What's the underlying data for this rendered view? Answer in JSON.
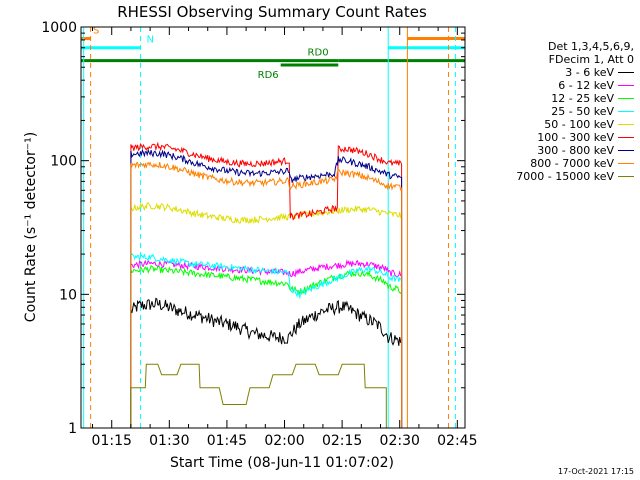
{
  "chart_data": {
    "type": "line",
    "title": "RHESSI Observing Summary Count Rates",
    "xlabel": "Start Time (08-Jun-11 01:07:02)",
    "ylabel": "Count Rate (s⁻¹ detector⁻¹)",
    "y_scale": "log",
    "ylim": [
      1,
      1000
    ],
    "xlim_minutes": [
      67,
      167
    ],
    "x_ticks": [
      {
        "minute": 75,
        "label": "01:15"
      },
      {
        "minute": 90,
        "label": "01:30"
      },
      {
        "minute": 105,
        "label": "01:45"
      },
      {
        "minute": 120,
        "label": "02:00"
      },
      {
        "minute": 135,
        "label": "02:15"
      },
      {
        "minute": 150,
        "label": "02:30"
      },
      {
        "minute": 165,
        "label": "02:45"
      }
    ],
    "y_ticks": [
      {
        "value": 1,
        "label": "1"
      },
      {
        "value": 10,
        "label": "10"
      },
      {
        "value": 100,
        "label": "100"
      },
      {
        "value": 1000,
        "label": "1000"
      }
    ],
    "legend": {
      "header": [
        "Det 1,3,4,5,6,9,",
        "FDecim 1, Att 0"
      ],
      "placement": "right"
    },
    "series": [
      {
        "name": "3 - 6 keV",
        "color": "#000000",
        "x": [
          80,
          82,
          87,
          92,
          97,
          102,
          107,
          112,
          117,
          121,
          121.5,
          124,
          127,
          130,
          133,
          135,
          138,
          141,
          144,
          146.5,
          147,
          149,
          150.5
        ],
        "y": [
          7.5,
          8.2,
          8.5,
          7.6,
          7.0,
          6.3,
          5.8,
          5.1,
          4.8,
          4.7,
          5.0,
          6.0,
          6.8,
          7.5,
          7.9,
          8.1,
          7.4,
          6.6,
          6.0,
          5.1,
          4.8,
          4.6,
          4.4
        ]
      },
      {
        "name": "6 - 12 keV",
        "color": "#ff00ff",
        "x": [
          80,
          85,
          90,
          95,
          100,
          105,
          110,
          115,
          121,
          121.5,
          124,
          127,
          130,
          133,
          136,
          139,
          142,
          144,
          146.5,
          147,
          149,
          150.5
        ],
        "y": [
          16.5,
          17,
          16.8,
          16.3,
          16,
          15.5,
          15.2,
          14.8,
          14.5,
          14.2,
          14.8,
          15.4,
          16,
          16.4,
          16.8,
          17,
          16.8,
          16.2,
          15.5,
          14.5,
          14.2,
          14
        ]
      },
      {
        "name": "12 - 25 keV",
        "color": "#00ff00",
        "x": [
          80,
          85,
          90,
          95,
          100,
          105,
          110,
          115,
          121,
          121.5,
          124,
          127,
          130,
          133,
          136,
          139,
          142,
          144,
          146.5,
          147,
          149,
          150.5
        ],
        "y": [
          15,
          15.5,
          15,
          14.5,
          14,
          13.5,
          13,
          12.5,
          12,
          11,
          10.5,
          11.5,
          12.5,
          13.5,
          14.2,
          14.5,
          14,
          13.2,
          12.2,
          11.5,
          11,
          10.5
        ]
      },
      {
        "name": "25 - 50 keV",
        "color": "#00ffff",
        "x": [
          80,
          85,
          90,
          95,
          100,
          105,
          110,
          115,
          121,
          121.5,
          124,
          127,
          130,
          133,
          136,
          139,
          142,
          144,
          146.5,
          147,
          149,
          150.5
        ],
        "y": [
          19,
          19,
          18,
          17,
          16.5,
          16,
          15.5,
          15,
          14.5,
          11,
          10,
          11,
          12,
          13,
          14,
          15,
          15.5,
          15,
          14,
          13.5,
          13,
          12.5
        ]
      },
      {
        "name": "50 - 100 keV",
        "color": "#dddd00",
        "x": [
          80,
          82,
          85,
          88,
          91,
          94,
          97,
          100,
          103,
          106,
          109,
          112,
          115,
          118,
          121,
          121.5,
          124,
          127,
          130,
          133,
          136,
          139,
          142,
          144,
          146.5,
          147,
          149,
          150.5
        ],
        "y": [
          44,
          45,
          46,
          45.5,
          44,
          42,
          40,
          38.5,
          37.5,
          36.5,
          36,
          36.2,
          36.8,
          37.5,
          38,
          38,
          39,
          40,
          41,
          42,
          43,
          43.5,
          43,
          42,
          40.5,
          40,
          39.5,
          39
        ]
      },
      {
        "name": "100 - 300 keV",
        "color": "#ff0000",
        "x": [
          80,
          82,
          85,
          88,
          91,
          94,
          97,
          100,
          103,
          106,
          109,
          112,
          115,
          118,
          121,
          121.5,
          124,
          127,
          130,
          133,
          134,
          136,
          139,
          142,
          144,
          146.5,
          147,
          149,
          150.5
        ],
        "y": [
          125,
          126,
          128,
          127,
          123,
          117,
          110,
          104,
          100,
          97,
          95,
          95,
          96,
          98,
          100,
          38,
          39,
          40,
          42,
          44,
          122,
          123,
          118,
          112,
          105,
          98,
          96,
          95,
          94
        ]
      },
      {
        "name": "300 - 800 keV",
        "color": "#00008b",
        "x": [
          80,
          82,
          85,
          88,
          91,
          94,
          97,
          100,
          103,
          106,
          109,
          112,
          115,
          118,
          121,
          121.5,
          124,
          127,
          130,
          133,
          134,
          136,
          139,
          142,
          144,
          146.5,
          147,
          149,
          150.5
        ],
        "y": [
          112,
          113,
          114,
          113,
          108,
          102,
          95,
          90,
          86,
          83,
          81,
          80,
          81,
          82,
          84,
          72,
          74,
          76,
          78,
          80,
          102,
          100,
          95,
          90,
          85,
          80,
          78,
          76,
          75
        ]
      },
      {
        "name": "800 - 7000 keV",
        "color": "#ff8000",
        "x": [
          80,
          82,
          85,
          88,
          91,
          94,
          97,
          100,
          103,
          106,
          109,
          112,
          115,
          118,
          121,
          121.5,
          124,
          127,
          130,
          133,
          134,
          136,
          139,
          142,
          144,
          146.5,
          147,
          149,
          150.5
        ],
        "y": [
          92,
          93,
          94,
          93,
          89,
          84,
          79,
          75,
          72,
          70,
          68.5,
          68,
          68.5,
          69.5,
          71,
          64,
          66,
          68,
          70,
          72,
          82,
          81,
          78,
          74,
          70,
          66,
          65,
          64,
          63
        ]
      },
      {
        "name": "7000 - 15000 keV",
        "color": "#808000",
        "x": [
          80,
          83,
          84,
          87,
          88,
          92,
          93,
          97,
          98,
          103,
          104,
          110,
          111,
          116,
          117,
          122,
          123,
          128,
          129,
          134,
          135,
          140,
          141,
          146.5
        ],
        "y": [
          2,
          2,
          3,
          3,
          2.5,
          2.5,
          3,
          3,
          2,
          2,
          1.5,
          1.5,
          2,
          2,
          2.5,
          2.5,
          3,
          3,
          2.5,
          2.5,
          3,
          3,
          2,
          2
        ]
      }
    ],
    "state_bars": [
      {
        "label": "S",
        "color": "#ff8000",
        "x_start": 67,
        "x_end": 69.5,
        "y": 820
      },
      {
        "label": "N",
        "color": "#00ffff",
        "x_start": 67,
        "x_end": 82.5,
        "y": 700
      },
      {
        "label": "",
        "color": "#00ffff",
        "x_start": 147,
        "x_end": 167,
        "y": 700
      },
      {
        "label": "",
        "color": "#ff8000",
        "x_start": 152,
        "x_end": 167,
        "y": 820
      },
      {
        "label": "RD0",
        "color": "#008000",
        "x_start": 67,
        "x_end": 134,
        "y": 560
      },
      {
        "label": "RD6",
        "color": "#008000",
        "x_start": 119,
        "x_end": 134,
        "y": 520
      },
      {
        "label": "",
        "color": "#008000",
        "x_start": 134,
        "x_end": 167,
        "y": 560
      }
    ],
    "vertical_lines": [
      {
        "x": 67.7,
        "color": "#00ffff",
        "style": "solid"
      },
      {
        "x": 69.5,
        "color": "#ff8000",
        "style": "dashed"
      },
      {
        "x": 82.5,
        "color": "#00ffff",
        "style": "dashed"
      },
      {
        "x": 147,
        "color": "#00ffff",
        "style": "solid"
      },
      {
        "x": 152,
        "color": "#ff8000",
        "style": "solid"
      },
      {
        "x": 162.7,
        "color": "#ff8000",
        "style": "dashed"
      },
      {
        "x": 164.5,
        "color": "#00ffff",
        "style": "dashed"
      }
    ],
    "grid": false
  },
  "footer": {
    "timestamp": "17-Oct-2021 17:15"
  }
}
